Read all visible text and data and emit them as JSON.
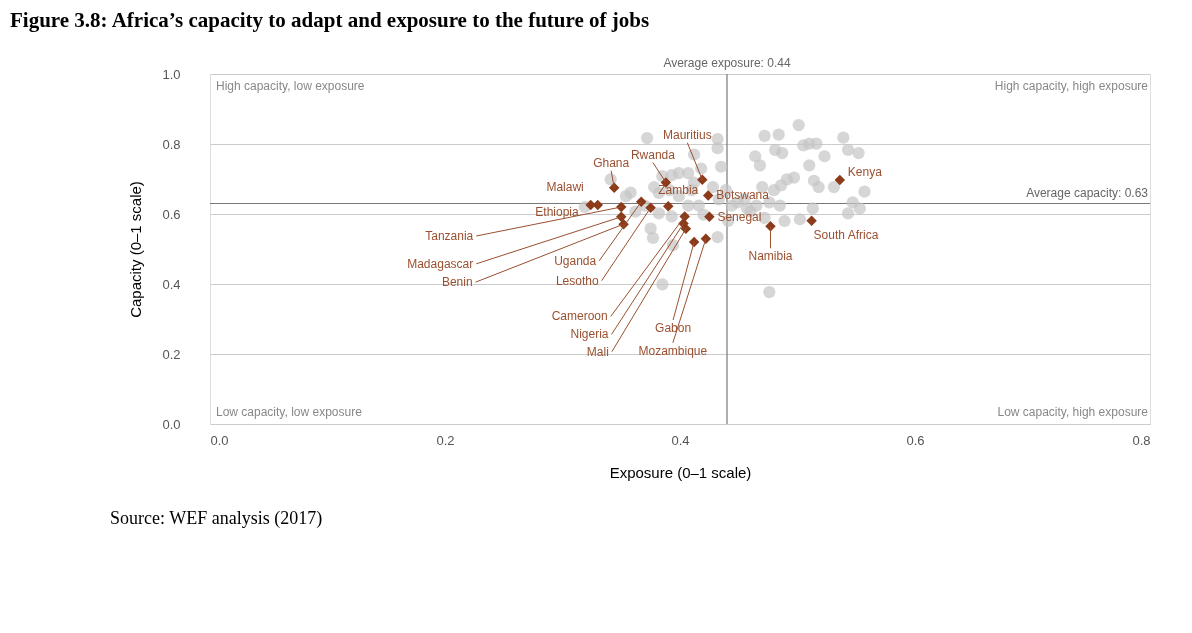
{
  "chart_data": {
    "type": "scatter",
    "title": "Figure 3.8: Africa’s capacity to adapt and exposure to the future of jobs",
    "xlabel": "Exposure (0–1 scale)",
    "ylabel": "Capacity (0–1 scale)",
    "xlim": [
      0,
      0.8
    ],
    "xticks": [
      {
        "value": 0,
        "label": "0.0"
      },
      0.2,
      0.4,
      0.6,
      0.8
    ],
    "ylim": [
      0,
      1
    ],
    "yticks": [
      {
        "value": 0,
        "label": "0.0"
      },
      0.2,
      0.4,
      0.6,
      0.8,
      {
        "value": 1,
        "label": "1.0"
      }
    ],
    "grid": "y",
    "ref_lines": [
      {
        "axis": "x",
        "value": 0.44,
        "label": "Average exposure: 0.44",
        "color": "#777777"
      },
      {
        "axis": "y",
        "value": 0.63,
        "label": "Average capacity: 0.63",
        "color": "#777777"
      }
    ],
    "annotations": [
      "High capacity, low exposure",
      "High capacity, high exposure",
      "Low capacity, low exposure",
      "Low capacity, high exposure",
      "Source: WEF analysis (2017)"
    ],
    "series": [
      {
        "color": "#c4c4c4",
        "marker": "circle",
        "x": [
          0.372,
          0.412,
          0.432,
          0.432,
          0.435,
          0.418,
          0.407,
          0.399,
          0.393,
          0.385,
          0.378,
          0.382,
          0.358,
          0.354,
          0.362,
          0.382,
          0.393,
          0.375,
          0.377,
          0.394,
          0.385,
          0.432,
          0.416,
          0.41,
          0.399,
          0.412,
          0.407,
          0.439,
          0.444,
          0.441,
          0.449,
          0.457,
          0.465,
          0.472,
          0.484,
          0.501,
          0.464,
          0.468,
          0.481,
          0.487,
          0.505,
          0.51,
          0.516,
          0.523,
          0.539,
          0.543,
          0.552,
          0.51,
          0.497,
          0.491,
          0.486,
          0.48,
          0.47,
          0.476,
          0.485,
          0.489,
          0.502,
          0.513,
          0.514,
          0.518,
          0.531,
          0.547,
          0.543,
          0.553,
          0.557,
          0.476,
          0.42,
          0.37,
          0.391,
          0.428,
          0.433,
          0.455,
          0.46,
          0.472,
          0.319,
          0.341
        ],
        "values": [
          0.817,
          0.77,
          0.814,
          0.788,
          0.735,
          0.73,
          0.717,
          0.717,
          0.711,
          0.708,
          0.677,
          0.66,
          0.661,
          0.651,
          0.607,
          0.602,
          0.593,
          0.558,
          0.532,
          0.511,
          0.399,
          0.534,
          0.624,
          0.668,
          0.651,
          0.69,
          0.624,
          0.668,
          0.624,
          0.58,
          0.633,
          0.616,
          0.624,
          0.823,
          0.827,
          0.854,
          0.765,
          0.739,
          0.783,
          0.774,
          0.796,
          0.801,
          0.801,
          0.765,
          0.818,
          0.783,
          0.774,
          0.739,
          0.704,
          0.699,
          0.682,
          0.668,
          0.677,
          0.633,
          0.624,
          0.58,
          0.585,
          0.616,
          0.695,
          0.677,
          0.677,
          0.633,
          0.602,
          0.616,
          0.664,
          0.377,
          0.598,
          0.624,
          0.668,
          0.677,
          0.642,
          0.642,
          0.607,
          0.589,
          0.62,
          0.699
        ]
      },
      {
        "color": "#8b3a1a",
        "marker": "diamond",
        "x": [
          0.419,
          0.344,
          0.388,
          0.33,
          0.324,
          0.39,
          0.424,
          0.425,
          0.536,
          0.512,
          0.477,
          0.35,
          0.35,
          0.352,
          0.367,
          0.375,
          0.404,
          0.403,
          0.405,
          0.412,
          0.422
        ],
        "values": [
          0.698,
          0.675,
          0.69,
          0.626,
          0.626,
          0.622,
          0.653,
          0.592,
          0.697,
          0.581,
          0.565,
          0.62,
          0.592,
          0.571,
          0.635,
          0.618,
          0.593,
          0.573,
          0.558,
          0.52,
          0.529
        ],
        "value_labels": [
          "Mauritius",
          "Ghana",
          "Rwanda",
          "Malawi",
          "Ethiopia",
          "Zambia",
          "Botswana",
          "Senegal",
          "Kenya",
          "South Africa",
          "Namibia",
          "Tanzania",
          "Madagascar",
          "Benin",
          "Uganda",
          "Lesotho",
          "Cameroon",
          "Nigeria",
          "Mali",
          "Gabon",
          "Mozambique"
        ]
      }
    ]
  }
}
